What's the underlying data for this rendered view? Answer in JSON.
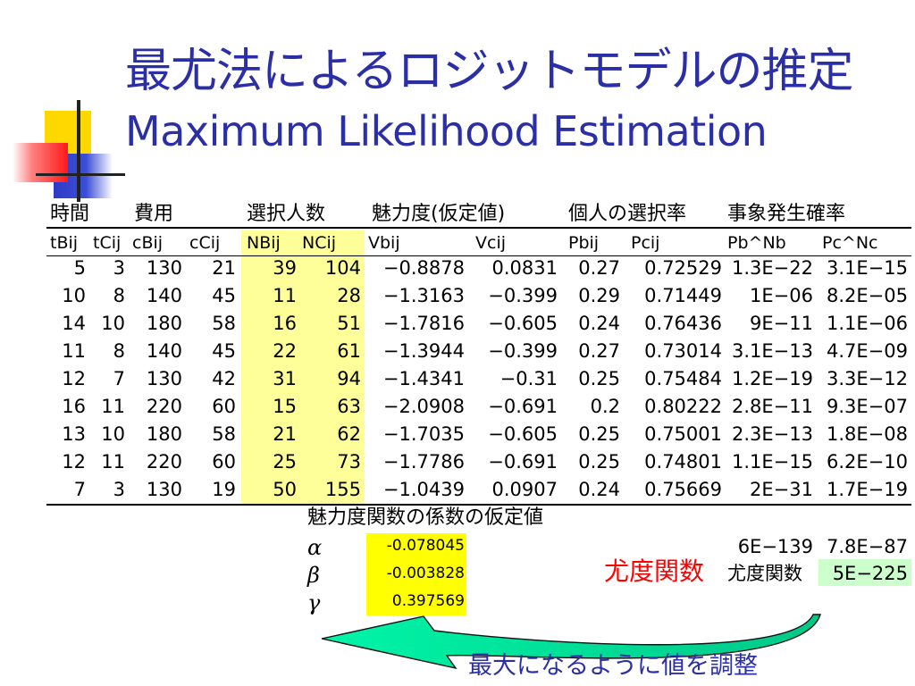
{
  "slide": {
    "title_jp": "最尤法によるロジットモデルの推定",
    "title_en": "Maximum Likelihood Estimation"
  },
  "table": {
    "group_headers": [
      "時間",
      "費用",
      "選択人数",
      "魅力度(仮定値)",
      "個人の選択率",
      "事象発生確率"
    ],
    "columns": [
      "tBij",
      "tCij",
      "cBij",
      "cCij",
      "NBij",
      "NCij",
      "Vbij",
      "Vcij",
      "Pbij",
      "Pcij",
      "Pb^Nb",
      "Pc^Nc"
    ],
    "rows": [
      [
        "5",
        "3",
        "130",
        "21",
        "39",
        "104",
        "−0.8878",
        "0.0831",
        "0.27",
        "0.72529",
        "1.3E−22",
        "3.1E−15"
      ],
      [
        "10",
        "8",
        "140",
        "45",
        "11",
        "28",
        "−1.3163",
        "−0.399",
        "0.29",
        "0.71449",
        "1E−06",
        "8.2E−05"
      ],
      [
        "14",
        "10",
        "180",
        "58",
        "16",
        "51",
        "−1.7816",
        "−0.605",
        "0.24",
        "0.76436",
        "9E−11",
        "1.1E−06"
      ],
      [
        "11",
        "8",
        "140",
        "45",
        "22",
        "61",
        "−1.3944",
        "−0.399",
        "0.27",
        "0.73014",
        "3.1E−13",
        "4.7E−09"
      ],
      [
        "12",
        "7",
        "130",
        "42",
        "31",
        "94",
        "−1.4341",
        "−0.31",
        "0.25",
        "0.75484",
        "1.2E−19",
        "3.3E−12"
      ],
      [
        "16",
        "11",
        "220",
        "60",
        "15",
        "63",
        "−2.0908",
        "−0.691",
        "0.2",
        "0.80222",
        "2.8E−11",
        "9.3E−07"
      ],
      [
        "13",
        "10",
        "180",
        "58",
        "21",
        "62",
        "−1.7035",
        "−0.605",
        "0.25",
        "0.75001",
        "2.3E−13",
        "1.8E−08"
      ],
      [
        "12",
        "11",
        "220",
        "60",
        "25",
        "73",
        "−1.7786",
        "−0.691",
        "0.25",
        "0.74801",
        "1.1E−15",
        "6.2E−10"
      ],
      [
        "7",
        "3",
        "130",
        "19",
        "50",
        "155",
        "−1.0439",
        "0.0907",
        "0.24",
        "0.75669",
        "2E−31",
        "1.7E−19"
      ]
    ]
  },
  "parameters": {
    "heading": "魅力度関数の係数の仮定値",
    "items": [
      {
        "symbol": "α",
        "value": "-0.078045"
      },
      {
        "symbol": "β",
        "value": "-0.003828"
      },
      {
        "symbol": "γ",
        "value": "0.397569"
      }
    ]
  },
  "products": {
    "pb": "6E−139",
    "pc": "7.8E−87"
  },
  "likelihood": {
    "label_red": "尤度関数",
    "label_black": "尤度関数",
    "value": "5E−225"
  },
  "note": "最大になるように値を調整",
  "colors": {
    "title": "#2b2fa6",
    "highlight_columns": "#ffff99",
    "parameter_box": "#ffff00",
    "likelihood_box": "#ccffcc",
    "arrow_fill": "#00e8a0",
    "label_red": "#ff0000"
  }
}
